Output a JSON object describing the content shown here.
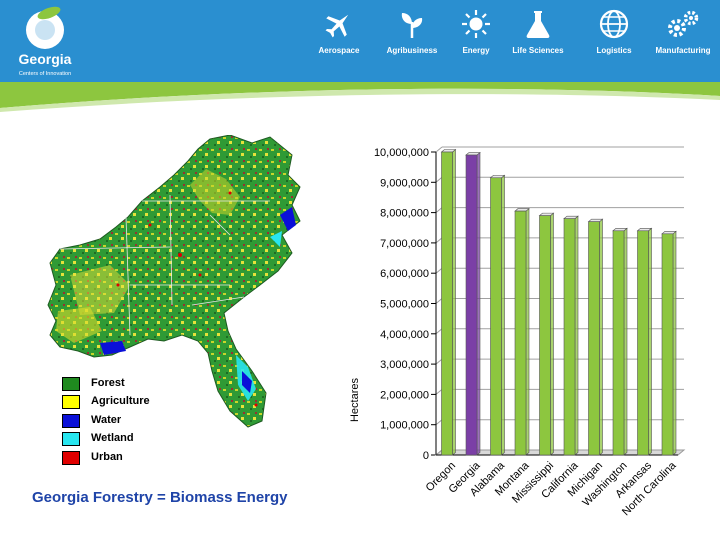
{
  "header": {
    "brand_name": "Georgia",
    "brand_tagline": "Centers of Innovation",
    "nav_items": [
      {
        "label": "Aerospace",
        "icon": "airplane-icon"
      },
      {
        "label": "Agribusiness",
        "icon": "sprout-icon"
      },
      {
        "label": "Energy",
        "icon": "sun-icon"
      },
      {
        "label": "Life Sciences",
        "icon": "flask-icon"
      },
      {
        "label": "Logistics",
        "icon": "globe-icon"
      },
      {
        "label": "Manufacturing",
        "icon": "gears-icon"
      }
    ],
    "colors": {
      "bar": "#2a8fd0",
      "accent": "#8dc63f"
    }
  },
  "map_legend": [
    {
      "label": "Forest",
      "color": "#1f8a1f"
    },
    {
      "label": "Agriculture",
      "color": "#ffff00"
    },
    {
      "label": "Water",
      "color": "#0a10d8"
    },
    {
      "label": "Wetland",
      "color": "#28e6f0"
    },
    {
      "label": "Urban",
      "color": "#e00000"
    }
  ],
  "caption": "Georgia Forestry = Biomass Energy",
  "chart_data": {
    "type": "bar",
    "ylabel": "Hectares",
    "xlabel": "",
    "ylim": [
      0,
      10000000
    ],
    "yticks": [
      0,
      1000000,
      2000000,
      3000000,
      4000000,
      5000000,
      6000000,
      7000000,
      8000000,
      9000000,
      10000000
    ],
    "ytick_labels": [
      "0",
      "1,000,000",
      "2,000,000",
      "3,000,000",
      "4,000,000",
      "5,000,000",
      "6,000,000",
      "7,000,000",
      "8,000,000",
      "9,000,000",
      "10,000,000"
    ],
    "categories": [
      "Oregon",
      "Georgia",
      "Alabama",
      "Montana",
      "Mississippi",
      "California",
      "Michigan",
      "Washington",
      "Arkansas",
      "North Carolina"
    ],
    "values": [
      10000000,
      9900000,
      9150000,
      8050000,
      7900000,
      7800000,
      7700000,
      7400000,
      7400000,
      7300000
    ],
    "colors": [
      "#8dc63f",
      "#7b3fa6",
      "#8dc63f",
      "#8dc63f",
      "#8dc63f",
      "#8dc63f",
      "#8dc63f",
      "#8dc63f",
      "#8dc63f",
      "#8dc63f"
    ],
    "grid": true
  }
}
